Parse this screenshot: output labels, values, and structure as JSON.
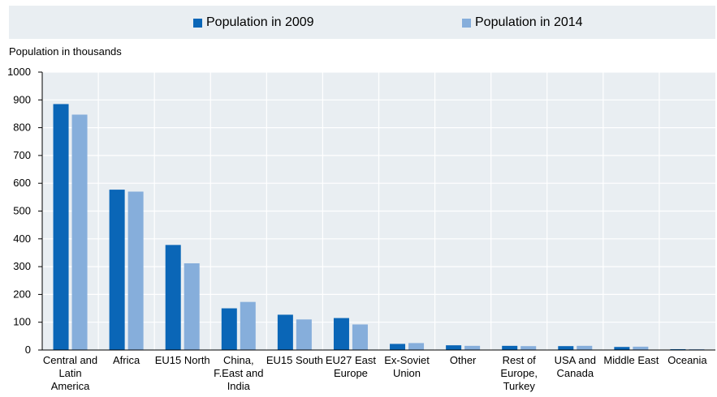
{
  "chart_data": {
    "type": "bar",
    "title": "",
    "ylabel": "Population in thousands",
    "xlabel": "",
    "ylim": [
      0,
      1000
    ],
    "yticks": [
      0,
      100,
      200,
      300,
      400,
      500,
      600,
      700,
      800,
      900,
      1000
    ],
    "grid": true,
    "legend_placement": "top",
    "categories": [
      [
        "Central and",
        "Latin",
        "America"
      ],
      [
        "Africa"
      ],
      [
        "EU15 North"
      ],
      [
        "China,",
        "F.East and",
        "India"
      ],
      [
        "EU15 South"
      ],
      [
        "EU27 East",
        "Europe"
      ],
      [
        "Ex-Soviet",
        "Union"
      ],
      [
        "Other"
      ],
      [
        "Rest of",
        "Europe,",
        "Turkey"
      ],
      [
        "USA and",
        "Canada"
      ],
      [
        "Middle East"
      ],
      [
        "Oceania"
      ]
    ],
    "series": [
      {
        "name": "Population in 2009",
        "color": "#0a66b7",
        "values": [
          885,
          577,
          378,
          150,
          127,
          115,
          22,
          17,
          15,
          14,
          11,
          3
        ]
      },
      {
        "name": "Population in 2014",
        "color": "#86aedb",
        "values": [
          847,
          570,
          312,
          173,
          110,
          92,
          25,
          15,
          14,
          15,
          12,
          3
        ]
      }
    ]
  }
}
